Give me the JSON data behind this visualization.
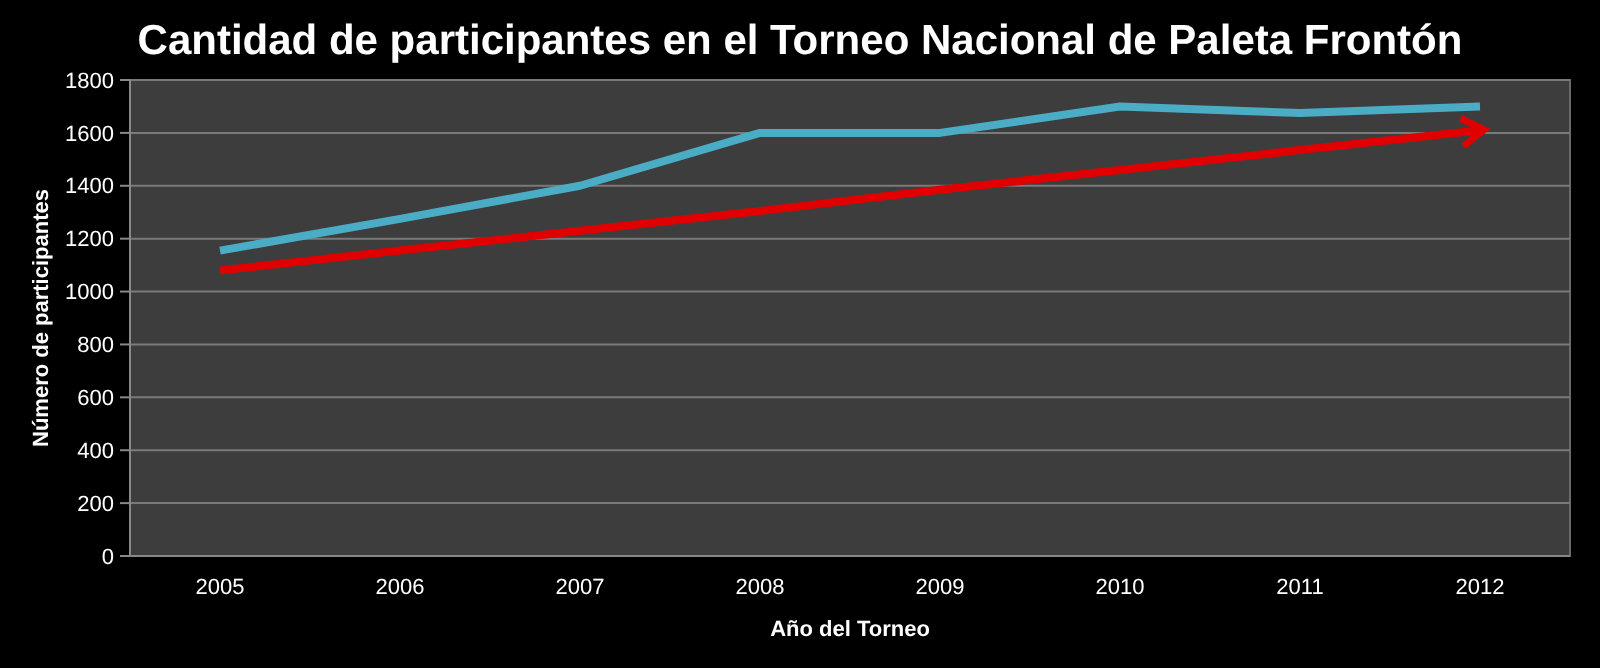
{
  "chart_data": {
    "type": "line",
    "title": "Cantidad de participantes en el Torneo Nacional de Paleta Frontón",
    "xlabel": "Año del Torneo",
    "ylabel": "Número de participantes",
    "categories": [
      "2005",
      "2006",
      "2007",
      "2008",
      "2009",
      "2010",
      "2011",
      "2012"
    ],
    "series": [
      {
        "color": "#4bacc6",
        "values": [
          1155,
          1275,
          1400,
          1600,
          1600,
          1700,
          1675,
          1700
        ]
      },
      {
        "type": "line",
        "color": "#e00000",
        "values": [
          1080,
          1155,
          1230,
          1305,
          1385,
          1460,
          1535,
          1610
        ]
      }
    ],
    "ylim": [
      0,
      1800
    ],
    "yticks": [
      0,
      200,
      400,
      600,
      800,
      1000,
      1200,
      1400,
      1600,
      1800
    ],
    "grid": "y"
  }
}
